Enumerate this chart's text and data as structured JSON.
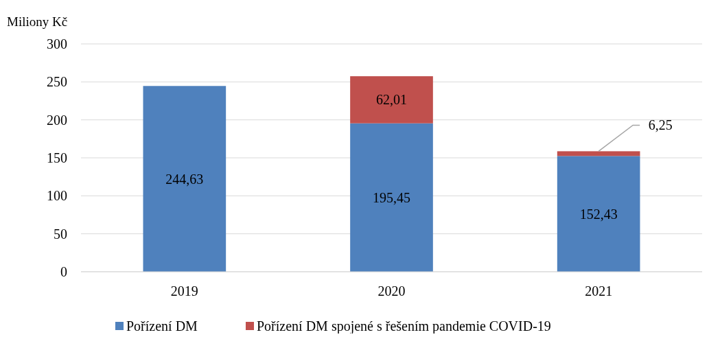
{
  "chart_data": {
    "type": "bar",
    "stacked": true,
    "ylabel": "Miliony Kč",
    "categories": [
      "2019",
      "2020",
      "2021"
    ],
    "series": [
      {
        "name": "Pořízení DM",
        "color": "#4f81bd",
        "values": [
          244.63,
          195.45,
          152.43
        ],
        "value_labels": [
          "244,63",
          "195,45",
          "152,43"
        ]
      },
      {
        "name": "Pořízení DM spojené s řešením pandemie COVID-19",
        "color": "#c0504d",
        "values": [
          null,
          62.01,
          6.25
        ],
        "value_labels": [
          null,
          "62,01",
          "6,25"
        ]
      }
    ],
    "ylim": [
      0,
      300
    ],
    "yticks": [
      0,
      50,
      100,
      150,
      200,
      250,
      300
    ],
    "grid": "y",
    "legend": "bottom"
  }
}
